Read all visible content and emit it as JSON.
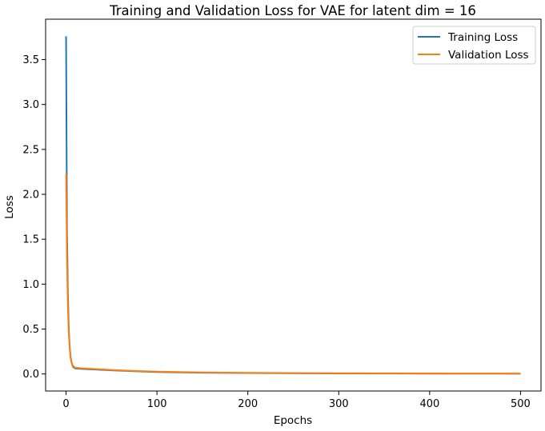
{
  "chart_data": {
    "type": "line",
    "title": "Training and Validation Loss for VAE for latent dim = 16",
    "xlabel": "Epochs",
    "ylabel": "Loss",
    "xlim": [
      -22.5,
      522.5
    ],
    "ylim": [
      -0.19,
      3.95
    ],
    "xticks": [
      0,
      100,
      200,
      300,
      400,
      500
    ],
    "yticks": [
      0.0,
      0.5,
      1.0,
      1.5,
      2.0,
      2.5,
      3.0,
      3.5
    ],
    "ytick_labels": [
      "0.0",
      "0.5",
      "1.0",
      "1.5",
      "2.0",
      "2.5",
      "3.0",
      "3.5"
    ],
    "grid": false,
    "legend_position": "top-right",
    "series": [
      {
        "name": "Training Loss",
        "color": "#1f77b4",
        "x": [
          0,
          1,
          2,
          3,
          4,
          5,
          6,
          7,
          8,
          10,
          15,
          20,
          30,
          50,
          75,
          100,
          150,
          200,
          300,
          400,
          500
        ],
        "y": [
          3.76,
          1.6,
          0.9,
          0.5,
          0.3,
          0.19,
          0.13,
          0.095,
          0.075,
          0.062,
          0.058,
          0.055,
          0.05,
          0.04,
          0.03,
          0.022,
          0.014,
          0.01,
          0.006,
          0.004,
          0.003
        ]
      },
      {
        "name": "Validation Loss",
        "color": "#ff7f0e",
        "x": [
          0,
          1,
          2,
          3,
          4,
          5,
          6,
          7,
          8,
          10,
          15,
          20,
          30,
          50,
          75,
          100,
          150,
          200,
          300,
          400,
          500
        ],
        "y": [
          2.23,
          1.3,
          0.75,
          0.45,
          0.28,
          0.18,
          0.125,
          0.1,
          0.085,
          0.07,
          0.065,
          0.062,
          0.056,
          0.045,
          0.034,
          0.026,
          0.017,
          0.012,
          0.008,
          0.006,
          0.005
        ]
      }
    ]
  }
}
